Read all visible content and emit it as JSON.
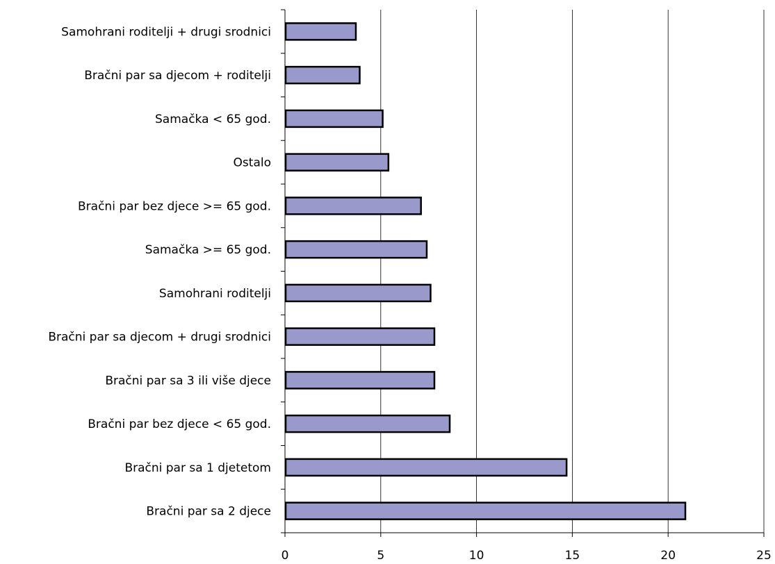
{
  "chart_data": {
    "type": "bar",
    "orientation": "horizontal",
    "title": "",
    "xlabel": "",
    "ylabel": "",
    "categories": [
      "Samohrani roditelji + drugi srodnici",
      "Bračni par sa djecom + roditelji",
      "Samačka < 65 god.",
      "Ostalo",
      "Bračni par bez djece >= 65 god.",
      "Samačka >= 65 god.",
      "Samohrani roditelji",
      "Bračni par sa djecom + drugi srodnici",
      "Bračni par sa 3 ili više djece",
      "Bračni par bez djece < 65 god.",
      "Bračni par sa 1 djetetom",
      "Bračni par sa 2 djece"
    ],
    "values": [
      3.7,
      3.9,
      5.1,
      5.4,
      7.1,
      7.4,
      7.6,
      7.8,
      7.8,
      8.6,
      14.7,
      20.9
    ],
    "xlim": [
      0,
      25
    ],
    "xticks": [
      "0",
      "5",
      "10",
      "15",
      "20",
      "25"
    ],
    "grid": "vertical",
    "bar_color": "#9999cc",
    "legend": "none"
  }
}
